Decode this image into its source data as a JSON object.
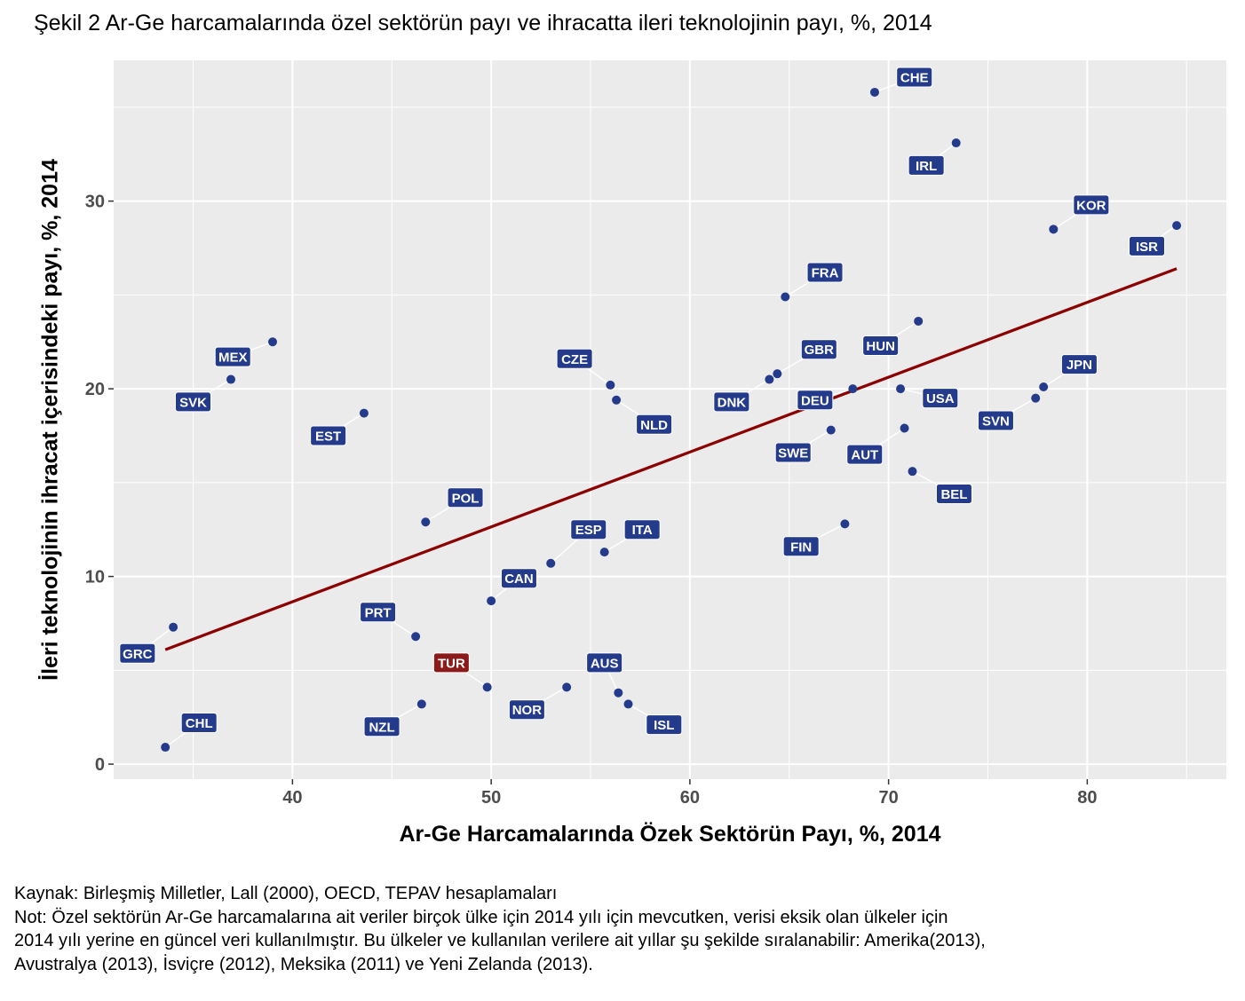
{
  "title": "Şekil 2 Ar-Ge harcamalarında özel sektörün payı ve ihracatta ileri teknolojinin payı, %, 2014",
  "footer": {
    "source": "Kaynak: Birleşmiş Milletler, Lall (2000), OECD, TEPAV hesaplamaları",
    "note_lines": [
      "Not: Özel sektörün Ar-Ge harcamalarına ait veriler birçok ülke için 2014 yılı için mevcutken, verisi eksik olan ülkeler için",
      "2014 yılı yerine en güncel veri kullanılmıştır. Bu ülkeler ve kullanılan verilere ait yıllar şu şekilde sıralanabilir: Amerika(2013),",
      "Avustralya (2013), İsviçre (2012), Meksika (2011) ve Yeni Zelanda (2013)."
    ]
  },
  "colors": {
    "panel_bg": "#ebebeb",
    "grid": "#ffffff",
    "point": "#233b8a",
    "label_bg": "#233b8a",
    "highlight_label_bg": "#8b1a1a",
    "trend": "#8b0000"
  },
  "chart_data": {
    "type": "scatter",
    "xlabel": "Ar-Ge Harcamalarında Özek Sektörün Payı, %, 2014",
    "ylabel": "İleri teknolojinin ihracat içerisindeki payı, %,  2014",
    "xlim": [
      31,
      87
    ],
    "ylim": [
      -0.8,
      37.5
    ],
    "xticks": [
      40,
      50,
      60,
      70,
      80
    ],
    "yticks": [
      0,
      10,
      20,
      30
    ],
    "grid": true,
    "highlight": "TUR",
    "trendline": {
      "x": [
        33.6,
        84.5
      ],
      "y": [
        6.1,
        26.4
      ]
    },
    "points": [
      {
        "label": "CHE",
        "x": 69.3,
        "y": 35.8,
        "lx": 71.3,
        "ly": 36.6
      },
      {
        "label": "IRL",
        "x": 73.4,
        "y": 33.1,
        "lx": 71.9,
        "ly": 31.9
      },
      {
        "label": "KOR",
        "x": 78.3,
        "y": 28.5,
        "lx": 80.2,
        "ly": 29.8
      },
      {
        "label": "ISR",
        "x": 84.5,
        "y": 28.7,
        "lx": 83.0,
        "ly": 27.6
      },
      {
        "label": "FRA",
        "x": 64.8,
        "y": 24.9,
        "lx": 66.8,
        "ly": 26.2
      },
      {
        "label": "HUN",
        "x": 71.5,
        "y": 23.6,
        "lx": 69.6,
        "ly": 22.3
      },
      {
        "label": "GBR",
        "x": 64.4,
        "y": 20.8,
        "lx": 66.5,
        "ly": 22.1
      },
      {
        "label": "DNK",
        "x": 64.0,
        "y": 20.5,
        "lx": 62.1,
        "ly": 19.3
      },
      {
        "label": "JPN",
        "x": 77.8,
        "y": 20.1,
        "lx": 79.6,
        "ly": 21.3
      },
      {
        "label": "SVN",
        "x": 77.4,
        "y": 19.5,
        "lx": 75.4,
        "ly": 18.3
      },
      {
        "label": "DEU",
        "x": 68.2,
        "y": 20.0,
        "lx": 66.3,
        "ly": 19.4
      },
      {
        "label": "USA",
        "x": 70.6,
        "y": 20.0,
        "lx": 72.6,
        "ly": 19.5
      },
      {
        "label": "SWE",
        "x": 67.1,
        "y": 17.8,
        "lx": 65.2,
        "ly": 16.6
      },
      {
        "label": "AUT",
        "x": 70.8,
        "y": 17.9,
        "lx": 68.8,
        "ly": 16.5
      },
      {
        "label": "BEL",
        "x": 71.2,
        "y": 15.6,
        "lx": 73.3,
        "ly": 14.4
      },
      {
        "label": "FIN",
        "x": 67.8,
        "y": 12.8,
        "lx": 65.6,
        "ly": 11.6
      },
      {
        "label": "CZE",
        "x": 56.0,
        "y": 20.2,
        "lx": 54.2,
        "ly": 21.6
      },
      {
        "label": "NLD",
        "x": 56.3,
        "y": 19.4,
        "lx": 58.2,
        "ly": 18.1
      },
      {
        "label": "ITA",
        "x": 55.7,
        "y": 11.3,
        "lx": 57.6,
        "ly": 12.5
      },
      {
        "label": "ESP",
        "x": 53.0,
        "y": 10.7,
        "lx": 54.9,
        "ly": 12.5
      },
      {
        "label": "CAN",
        "x": 50.0,
        "y": 8.7,
        "lx": 51.4,
        "ly": 9.9
      },
      {
        "label": "AUS",
        "x": 56.4,
        "y": 3.8,
        "lx": 55.7,
        "ly": 5.4
      },
      {
        "label": "ISL",
        "x": 56.9,
        "y": 3.2,
        "lx": 58.7,
        "ly": 2.1
      },
      {
        "label": "NOR",
        "x": 53.8,
        "y": 4.1,
        "lx": 51.8,
        "ly": 2.9
      },
      {
        "label": "TUR",
        "x": 49.8,
        "y": 4.1,
        "lx": 48.0,
        "ly": 5.4
      },
      {
        "label": "PRT",
        "x": 46.2,
        "y": 6.8,
        "lx": 44.3,
        "ly": 8.1
      },
      {
        "label": "NZL",
        "x": 46.5,
        "y": 3.2,
        "lx": 44.5,
        "ly": 2.0
      },
      {
        "label": "POL",
        "x": 46.7,
        "y": 12.9,
        "lx": 48.7,
        "ly": 14.2
      },
      {
        "label": "EST",
        "x": 43.6,
        "y": 18.7,
        "lx": 41.8,
        "ly": 17.5
      },
      {
        "label": "MEX",
        "x": 39.0,
        "y": 22.5,
        "lx": 37.0,
        "ly": 21.7
      },
      {
        "label": "SVK",
        "x": 36.9,
        "y": 20.5,
        "lx": 35.0,
        "ly": 19.3
      },
      {
        "label": "GRC",
        "x": 34.0,
        "y": 7.3,
        "lx": 32.2,
        "ly": 5.9
      },
      {
        "label": "CHL",
        "x": 33.6,
        "y": 0.9,
        "lx": 35.3,
        "ly": 2.2
      }
    ]
  }
}
